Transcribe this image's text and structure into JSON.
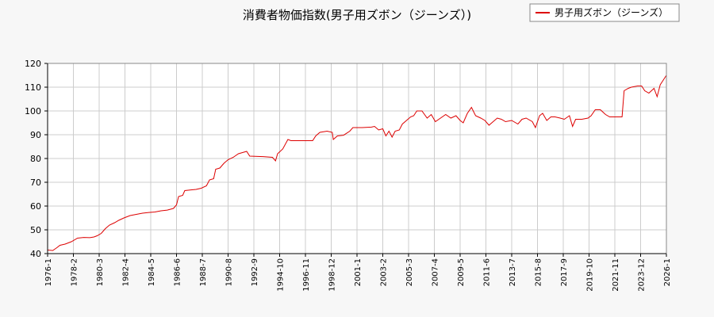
{
  "chart_data": {
    "type": "line",
    "title": "消費者物価指数(男子用ズボン（ジーンズ）)",
    "xlabel": "",
    "ylabel": "",
    "ylim": [
      40,
      120
    ],
    "yticks": [
      40,
      50,
      60,
      70,
      80,
      90,
      100,
      110,
      120
    ],
    "xlim": [
      "1976-01",
      "2026-01"
    ],
    "xticks": [
      "1976-1",
      "1978-2",
      "1980-3",
      "1982-4",
      "1984-5",
      "1986-6",
      "1988-7",
      "1990-8",
      "1992-9",
      "1994-10",
      "1996-11",
      "1998-12",
      "2001-1",
      "2003-2",
      "2005-3",
      "2007-4",
      "2009-5",
      "2011-6",
      "2013-7",
      "2015-8",
      "2017-9",
      "2019-10",
      "2021-11",
      "2023-12",
      "2026-1"
    ],
    "grid": true,
    "legend_position": "top-right",
    "series": [
      {
        "name": "男子用ズボン（ジーンズ）",
        "color": "#dd0000",
        "points": [
          [
            "1976-01",
            41.5
          ],
          [
            "1976-06",
            41.3
          ],
          [
            "1976-10",
            42.5
          ],
          [
            "1977-01",
            43.5
          ],
          [
            "1977-06",
            44.0
          ],
          [
            "1977-12",
            45.0
          ],
          [
            "1978-06",
            46.5
          ],
          [
            "1978-12",
            46.8
          ],
          [
            "1979-06",
            46.7
          ],
          [
            "1979-10",
            47.0
          ],
          [
            "1980-01",
            47.5
          ],
          [
            "1980-05",
            48.5
          ],
          [
            "1980-09",
            50.5
          ],
          [
            "1981-01",
            52.0
          ],
          [
            "1981-06",
            53.0
          ],
          [
            "1981-10",
            54.0
          ],
          [
            "1982-03",
            55.0
          ],
          [
            "1982-09",
            56.0
          ],
          [
            "1983-03",
            56.5
          ],
          [
            "1983-09",
            57.0
          ],
          [
            "1984-03",
            57.3
          ],
          [
            "1984-09",
            57.5
          ],
          [
            "1985-03",
            58.0
          ],
          [
            "1985-09",
            58.3
          ],
          [
            "1986-03",
            59.0
          ],
          [
            "1986-06",
            60.5
          ],
          [
            "1986-08",
            64.0
          ],
          [
            "1986-12",
            64.5
          ],
          [
            "1987-02",
            66.5
          ],
          [
            "1987-08",
            66.8
          ],
          [
            "1988-01",
            67.0
          ],
          [
            "1988-06",
            67.5
          ],
          [
            "1988-11",
            68.5
          ],
          [
            "1989-02",
            71.0
          ],
          [
            "1989-06",
            71.5
          ],
          [
            "1989-08",
            75.5
          ],
          [
            "1989-12",
            76.0
          ],
          [
            "1990-04",
            78.0
          ],
          [
            "1990-08",
            79.5
          ],
          [
            "1991-01",
            80.5
          ],
          [
            "1991-06",
            82.0
          ],
          [
            "1991-10",
            82.5
          ],
          [
            "1992-02",
            83.0
          ],
          [
            "1992-05",
            81.0
          ],
          [
            "1993-06",
            80.8
          ],
          [
            "1994-03",
            80.5
          ],
          [
            "1994-06",
            79.0
          ],
          [
            "1994-08",
            82.0
          ],
          [
            "1995-01",
            84.0
          ],
          [
            "1995-06",
            88.0
          ],
          [
            "1995-09",
            87.5
          ],
          [
            "1996-06",
            87.5
          ],
          [
            "1997-06",
            87.5
          ],
          [
            "1997-09",
            89.5
          ],
          [
            "1998-01",
            91.0
          ],
          [
            "1998-08",
            91.5
          ],
          [
            "1999-01",
            91.0
          ],
          [
            "1999-02",
            88.0
          ],
          [
            "1999-06",
            89.5
          ],
          [
            "1999-12",
            89.8
          ],
          [
            "2000-06",
            91.5
          ],
          [
            "2000-09",
            93.0
          ],
          [
            "2001-06",
            93.0
          ],
          [
            "2002-03",
            93.2
          ],
          [
            "2002-06",
            93.5
          ],
          [
            "2002-10",
            92.0
          ],
          [
            "2003-02",
            92.5
          ],
          [
            "2003-05",
            89.5
          ],
          [
            "2003-08",
            91.5
          ],
          [
            "2003-11",
            89.0
          ],
          [
            "2004-02",
            91.5
          ],
          [
            "2004-06",
            92.0
          ],
          [
            "2004-09",
            94.5
          ],
          [
            "2005-01",
            96.0
          ],
          [
            "2005-05",
            97.5
          ],
          [
            "2005-08",
            98.0
          ],
          [
            "2005-11",
            100.0
          ],
          [
            "2006-04",
            100.0
          ],
          [
            "2006-09",
            97.0
          ],
          [
            "2007-01",
            98.5
          ],
          [
            "2007-05",
            95.5
          ],
          [
            "2007-10",
            97.0
          ],
          [
            "2008-03",
            98.5
          ],
          [
            "2008-08",
            97.0
          ],
          [
            "2009-01",
            98.0
          ],
          [
            "2009-05",
            96.0
          ],
          [
            "2009-08",
            95.0
          ],
          [
            "2009-12",
            99.0
          ],
          [
            "2010-04",
            101.5
          ],
          [
            "2010-08",
            98.0
          ],
          [
            "2011-01",
            97.0
          ],
          [
            "2011-05",
            96.0
          ],
          [
            "2011-09",
            94.0
          ],
          [
            "2012-01",
            95.5
          ],
          [
            "2012-05",
            97.0
          ],
          [
            "2012-09",
            96.5
          ],
          [
            "2013-01",
            95.5
          ],
          [
            "2013-07",
            96.0
          ],
          [
            "2014-01",
            94.5
          ],
          [
            "2014-05",
            96.5
          ],
          [
            "2014-09",
            97.0
          ],
          [
            "2015-03",
            95.5
          ],
          [
            "2015-06",
            93.0
          ],
          [
            "2015-10",
            98.0
          ],
          [
            "2016-01",
            99.0
          ],
          [
            "2016-05",
            96.0
          ],
          [
            "2016-09",
            97.5
          ],
          [
            "2017-01",
            97.5
          ],
          [
            "2017-06",
            97.0
          ],
          [
            "2017-10",
            96.5
          ],
          [
            "2018-03",
            98.0
          ],
          [
            "2018-06",
            93.5
          ],
          [
            "2018-09",
            96.5
          ],
          [
            "2019-03",
            96.5
          ],
          [
            "2019-09",
            97.0
          ],
          [
            "2019-12",
            98.0
          ],
          [
            "2020-04",
            100.5
          ],
          [
            "2020-09",
            100.5
          ],
          [
            "2021-02",
            98.5
          ],
          [
            "2021-06",
            97.5
          ],
          [
            "2022-01",
            97.5
          ],
          [
            "2022-06",
            97.5
          ],
          [
            "2022-08",
            108.5
          ],
          [
            "2022-12",
            109.5
          ],
          [
            "2023-03",
            110.0
          ],
          [
            "2023-09",
            110.5
          ],
          [
            "2024-01",
            110.5
          ],
          [
            "2024-04",
            108.5
          ],
          [
            "2024-08",
            107.5
          ],
          [
            "2025-01",
            109.5
          ],
          [
            "2025-04",
            106.0
          ],
          [
            "2025-07",
            111.0
          ],
          [
            "2025-10",
            113.0
          ],
          [
            "2026-01",
            115.0
          ]
        ]
      }
    ]
  }
}
